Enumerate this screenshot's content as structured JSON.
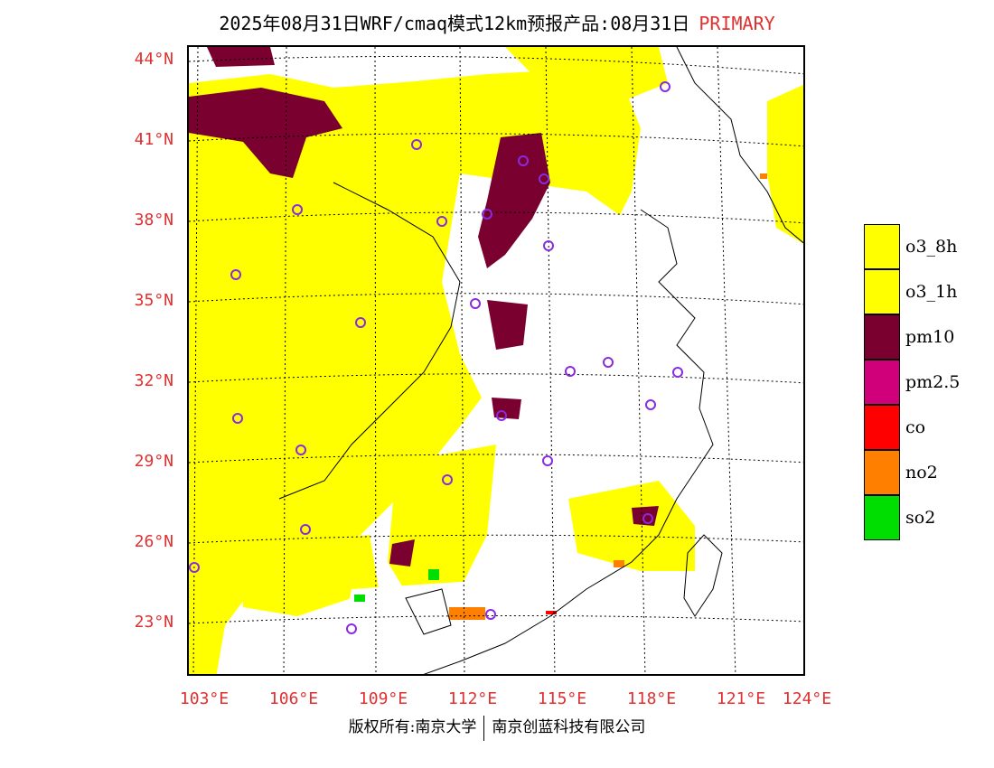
{
  "header": {
    "title": "2025年08月31日WRF/cmaq模式12km预报产品:08月31日",
    "primary_label": "PRIMARY"
  },
  "map": {
    "lat_labels": [
      "44°N",
      "41°N",
      "38°N",
      "35°N",
      "32°N",
      "29°N",
      "26°N",
      "23°N"
    ],
    "lon_labels": [
      "103°E",
      "106°E",
      "109°E",
      "112°E",
      "115°E",
      "118°E",
      "121°E",
      "124°E"
    ]
  },
  "legend": {
    "items": [
      {
        "label": "o3_8h",
        "color": "#ffff00"
      },
      {
        "label": "o3_1h",
        "color": "#ffff00"
      },
      {
        "label": "pm10",
        "color": "#7a0030"
      },
      {
        "label": "pm2.5",
        "color": "#d0007a"
      },
      {
        "label": "co",
        "color": "#ff0000"
      },
      {
        "label": "no2",
        "color": "#ff8000"
      },
      {
        "label": "so2",
        "color": "#00dd00"
      }
    ]
  },
  "footer": {
    "left": "版权所有:南京大学",
    "right": "南京创蓝科技有限公司"
  }
}
